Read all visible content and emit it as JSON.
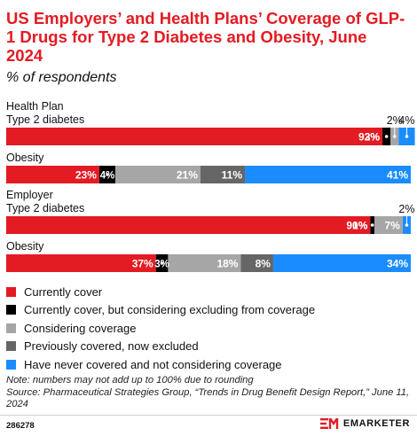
{
  "title": "US Employers’ and Health Plans’ Coverage of GLP-1 Drugs for Type 2 Diabetes and Obesity, June 2024",
  "subtitle": "% of respondents",
  "colors": {
    "title": "#e31b23",
    "currently_cover": "#e31b23",
    "considering_excluding": "#000000",
    "considering_coverage": "#a6a6a6",
    "previously_covered": "#666666",
    "never_covered": "#1a8cff"
  },
  "chart_data": {
    "type": "bar",
    "orientation": "horizontal",
    "stacked": true,
    "xlim": [
      0,
      100
    ],
    "grid": false,
    "legend_position": "bottom",
    "groups": [
      {
        "label": "Health Plan",
        "rows": [
          {
            "label": "Type 2 diabetes",
            "values": [
              93,
              2,
              2,
              0,
              4
            ],
            "labels": [
              "93%",
              "2%",
              "2%",
              "",
              "4%"
            ]
          },
          {
            "label": "Obesity",
            "values": [
              23,
              4,
              21,
              11,
              41
            ],
            "labels": [
              "23%",
              "4%",
              "21%",
              "11%",
              "41%"
            ]
          }
        ]
      },
      {
        "label": "Employer",
        "rows": [
          {
            "label": "Type 2 diabetes",
            "values": [
              90,
              1,
              7,
              0,
              2
            ],
            "labels": [
              "90%",
              "1%",
              "7%",
              "",
              "2%"
            ]
          },
          {
            "label": "Obesity",
            "values": [
              37,
              3,
              18,
              8,
              34
            ],
            "labels": [
              "37%",
              "3%",
              "18%",
              "8%",
              "34%"
            ]
          }
        ]
      }
    ],
    "series": [
      {
        "name": "Currently cover"
      },
      {
        "name": "Currently cover, but considering excluding from coverage"
      },
      {
        "name": "Considering coverage"
      },
      {
        "name": "Previously covered, now excluded"
      },
      {
        "name": "Have never covered and not considering coverage"
      }
    ]
  },
  "note": "Note: numbers may not add up to 100% due to rounding",
  "source": "Source: Pharmaceutical Strategies Group, “Trends in Drug Benefit Design Report,” June 11, 2024",
  "chart_id": "286278",
  "brand": "EMARKETER"
}
